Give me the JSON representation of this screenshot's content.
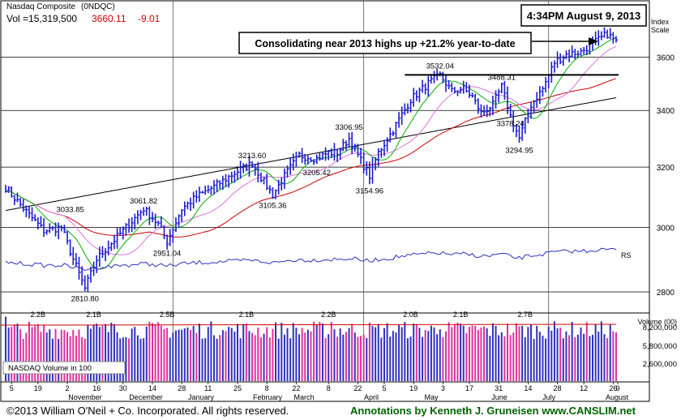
{
  "header": {
    "name": "Nasdaq Composite",
    "symbol": "(0NDQC)",
    "volume": "Vol =15,319,500",
    "close": "3660.11",
    "change": "-9.01"
  },
  "timestamp": "4:34PM August 9, 2013",
  "annotation": "Consolidating near 2013 highs up +21.2% year-to-date",
  "footer": {
    "copyright": "©2013 William O'Neil + Co. Incorporated. All rights reserved.",
    "credit": "Annotations by Kenneth J. Gruneisen www.CANSLIM.net"
  },
  "volume_panel": {
    "title": "Volume (00)",
    "legend": "NASDAQ Volume in 100",
    "peak_labels": [
      "2.2B",
      "2.1B",
      "2.5B",
      "2.1B",
      "2.2B",
      "2.0B",
      "2.1B",
      "2.7B"
    ],
    "tick_labels": [
      "8,200,000",
      "5,800,000",
      "2,600,000"
    ]
  },
  "colors": {
    "price_bar": "#1b1bd1",
    "ma_green": "#00b000",
    "ma_pink": "#e070e0",
    "ma_red": "#d00000",
    "ma_black": "#000000",
    "rs_line": "#3030c0",
    "volume_up": "#3030c0",
    "volume_down": "#e0309a",
    "header_red": "#d00000",
    "footer_green": "#006400"
  },
  "chart_data": {
    "type": "ohlc",
    "y_axis": {
      "title": "Index Scale",
      "scale": "log",
      "ticks": [
        2800,
        3000,
        3200,
        3400,
        3600
      ],
      "range": [
        2740,
        3820
      ]
    },
    "x_axis": {
      "day_labels": [
        "5",
        "19",
        "2",
        "16",
        "30",
        "14",
        "28",
        "11",
        "25",
        "8",
        "22",
        "8",
        "22",
        "5",
        "19",
        "3",
        "17",
        "31",
        "14",
        "28",
        "12",
        "26",
        "9"
      ],
      "month_labels": [
        "November",
        "December",
        "January",
        "February",
        "March",
        "April",
        "May",
        "June",
        "July",
        "August"
      ]
    },
    "resistance_level": 3532.04,
    "price_labels": [
      {
        "text": "3033.85",
        "value": 3033.85
      },
      {
        "text": "2810.80",
        "value": 2810.8
      },
      {
        "text": "3061.82",
        "value": 3061.82
      },
      {
        "text": "2951.04",
        "value": 2951.04
      },
      {
        "text": "3213.60",
        "value": 3213.6
      },
      {
        "text": "3105.36",
        "value": 3105.36
      },
      {
        "text": "3205.42",
        "value": 3205.42
      },
      {
        "text": "3306.95",
        "value": 3306.95
      },
      {
        "text": "3154.96",
        "value": 3154.96
      },
      {
        "text": "3532.04",
        "value": 3532.04
      },
      {
        "text": "3488.31",
        "value": 3488.31
      },
      {
        "text": "3378.24",
        "value": 3378.24
      },
      {
        "text": "3294.95",
        "value": 3294.95
      }
    ],
    "rs_label": "RS",
    "key_points": [
      {
        "t": 0,
        "v": 3130
      },
      {
        "t": 8,
        "v": 3040
      },
      {
        "t": 13,
        "v": 2990
      },
      {
        "t": 19,
        "v": 3000
      },
      {
        "t": 23,
        "v": 2900
      },
      {
        "t": 27,
        "v": 2810
      },
      {
        "t": 31,
        "v": 2900
      },
      {
        "t": 38,
        "v": 2970
      },
      {
        "t": 42,
        "v": 3010
      },
      {
        "t": 47,
        "v": 3061
      },
      {
        "t": 52,
        "v": 3010
      },
      {
        "t": 55,
        "v": 2955
      },
      {
        "t": 60,
        "v": 3060
      },
      {
        "t": 65,
        "v": 3100
      },
      {
        "t": 72,
        "v": 3140
      },
      {
        "t": 78,
        "v": 3180
      },
      {
        "t": 84,
        "v": 3213
      },
      {
        "t": 88,
        "v": 3150
      },
      {
        "t": 91,
        "v": 3106
      },
      {
        "t": 95,
        "v": 3170
      },
      {
        "t": 100,
        "v": 3240
      },
      {
        "t": 106,
        "v": 3230
      },
      {
        "t": 110,
        "v": 3250
      },
      {
        "t": 113,
        "v": 3250
      },
      {
        "t": 117,
        "v": 3300
      },
      {
        "t": 120,
        "v": 3240
      },
      {
        "t": 124,
        "v": 3170
      },
      {
        "t": 127,
        "v": 3250
      },
      {
        "t": 132,
        "v": 3330
      },
      {
        "t": 138,
        "v": 3440
      },
      {
        "t": 144,
        "v": 3500
      },
      {
        "t": 148,
        "v": 3530
      },
      {
        "t": 152,
        "v": 3470
      },
      {
        "t": 156,
        "v": 3480
      },
      {
        "t": 159,
        "v": 3450
      },
      {
        "t": 162,
        "v": 3390
      },
      {
        "t": 166,
        "v": 3420
      },
      {
        "t": 169,
        "v": 3488
      },
      {
        "t": 172,
        "v": 3380
      },
      {
        "t": 175,
        "v": 3300
      },
      {
        "t": 179,
        "v": 3420
      },
      {
        "t": 183,
        "v": 3480
      },
      {
        "t": 187,
        "v": 3580
      },
      {
        "t": 191,
        "v": 3610
      },
      {
        "t": 196,
        "v": 3620
      },
      {
        "t": 201,
        "v": 3660
      },
      {
        "t": 205,
        "v": 3690
      },
      {
        "t": 208,
        "v": 3660
      }
    ]
  }
}
